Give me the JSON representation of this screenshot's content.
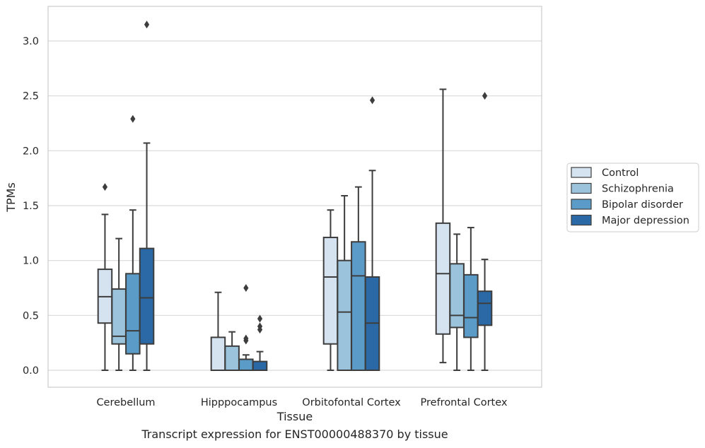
{
  "caption": "Transcript expression for ENST00000488370 by tissue",
  "chart_data": {
    "type": "box",
    "xlabel": "Tissue",
    "ylabel": "TPMs",
    "ylim": [
      -0.15,
      3.3
    ],
    "yticks": [
      0.0,
      0.5,
      1.0,
      1.5,
      2.0,
      2.5,
      3.0
    ],
    "ytick_labels": [
      "0.0",
      "0.5",
      "1.0",
      "1.5",
      "2.0",
      "2.5",
      "3.0"
    ],
    "grid": "horizontal",
    "legend_position": "right",
    "categories": [
      "Cerebellum",
      "Hipppocampus",
      "Orbitofontal Cortex",
      "Prefrontal Cortex"
    ],
    "series": [
      {
        "name": "Control",
        "color": "#d5e3f1",
        "boxes": [
          {
            "whisker_low": 0.0,
            "q1": 0.43,
            "median": 0.67,
            "q3": 0.92,
            "whisker_high": 1.42,
            "outliers": [
              1.67
            ]
          },
          {
            "whisker_low": 0.0,
            "q1": 0.0,
            "median": 0.0,
            "q3": 0.3,
            "whisker_high": 0.71,
            "outliers": []
          },
          {
            "whisker_low": 0.0,
            "q1": 0.24,
            "median": 0.85,
            "q3": 1.21,
            "whisker_high": 1.46,
            "outliers": []
          },
          {
            "whisker_low": 0.07,
            "q1": 0.33,
            "median": 0.88,
            "q3": 1.34,
            "whisker_high": 2.56,
            "outliers": []
          }
        ]
      },
      {
        "name": "Schizophrenia",
        "color": "#9cc3dc",
        "boxes": [
          {
            "whisker_low": 0.0,
            "q1": 0.24,
            "median": 0.31,
            "q3": 0.74,
            "whisker_high": 1.2,
            "outliers": []
          },
          {
            "whisker_low": 0.0,
            "q1": 0.0,
            "median": 0.0,
            "q3": 0.22,
            "whisker_high": 0.35,
            "outliers": []
          },
          {
            "whisker_low": 0.0,
            "q1": 0.0,
            "median": 0.53,
            "q3": 1.0,
            "whisker_high": 1.59,
            "outliers": []
          },
          {
            "whisker_low": 0.0,
            "q1": 0.39,
            "median": 0.5,
            "q3": 0.97,
            "whisker_high": 1.24,
            "outliers": []
          }
        ]
      },
      {
        "name": "Bipolar disorder",
        "color": "#5b9bc8",
        "boxes": [
          {
            "whisker_low": 0.0,
            "q1": 0.15,
            "median": 0.36,
            "q3": 0.88,
            "whisker_high": 1.46,
            "outliers": [
              2.29
            ]
          },
          {
            "whisker_low": 0.0,
            "q1": 0.0,
            "median": 0.0,
            "q3": 0.1,
            "whisker_high": 0.14,
            "outliers": [
              0.75,
              0.29,
              0.27
            ]
          },
          {
            "whisker_low": 0.0,
            "q1": 0.0,
            "median": 0.86,
            "q3": 1.17,
            "whisker_high": 1.67,
            "outliers": []
          },
          {
            "whisker_low": 0.0,
            "q1": 0.3,
            "median": 0.48,
            "q3": 0.87,
            "whisker_high": 1.3,
            "outliers": []
          }
        ]
      },
      {
        "name": "Major depression",
        "color": "#2a69a6",
        "boxes": [
          {
            "whisker_low": 0.0,
            "q1": 0.24,
            "median": 0.66,
            "q3": 1.11,
            "whisker_high": 2.07,
            "outliers": [
              3.15
            ]
          },
          {
            "whisker_low": 0.0,
            "q1": 0.0,
            "median": 0.0,
            "q3": 0.08,
            "whisker_high": 0.17,
            "outliers": [
              0.47,
              0.4,
              0.37
            ]
          },
          {
            "whisker_low": 0.0,
            "q1": 0.0,
            "median": 0.43,
            "q3": 0.85,
            "whisker_high": 1.82,
            "outliers": [
              2.46
            ]
          },
          {
            "whisker_low": 0.0,
            "q1": 0.41,
            "median": 0.61,
            "q3": 0.72,
            "whisker_high": 1.01,
            "outliers": [
              2.5
            ]
          }
        ]
      }
    ]
  }
}
